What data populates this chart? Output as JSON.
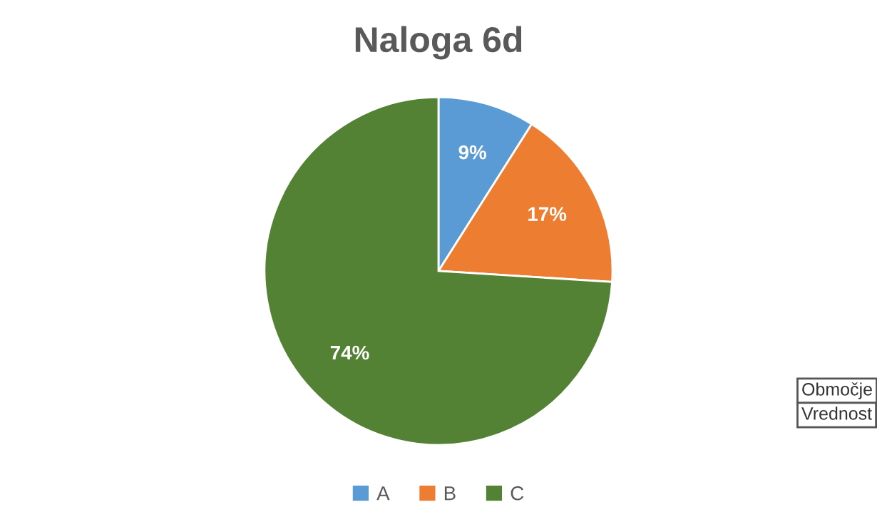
{
  "chart_data": {
    "type": "pie",
    "title": "Naloga 6d",
    "categories": [
      "A",
      "B",
      "C"
    ],
    "values": [
      9,
      17,
      74
    ],
    "colors": [
      "#5b9bd5",
      "#ed7d31",
      "#548235"
    ],
    "value_labels": [
      "9%",
      "17%",
      "74%"
    ],
    "legend": "bottom",
    "annotations": [
      "Območje",
      "Vrednost"
    ]
  }
}
